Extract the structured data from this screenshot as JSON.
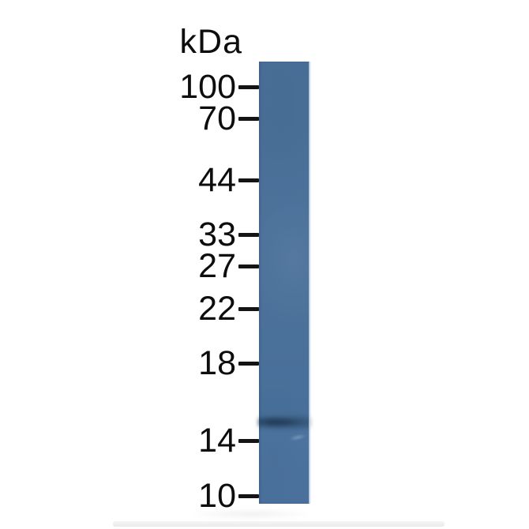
{
  "figure": {
    "type": "western-blot",
    "unit_label": "kDa",
    "ladder": [
      {
        "label": "100"
      },
      {
        "label": "70"
      },
      {
        "label": "44"
      },
      {
        "label": "33"
      },
      {
        "label": "27"
      },
      {
        "label": "22"
      },
      {
        "label": "18"
      },
      {
        "label": "14"
      },
      {
        "label": "10"
      }
    ],
    "colors": {
      "lane": "#4c729b",
      "band": "#2e4d6c",
      "text": "#0d0d0d",
      "tick": "#141414",
      "background": "#ffffff"
    }
  }
}
